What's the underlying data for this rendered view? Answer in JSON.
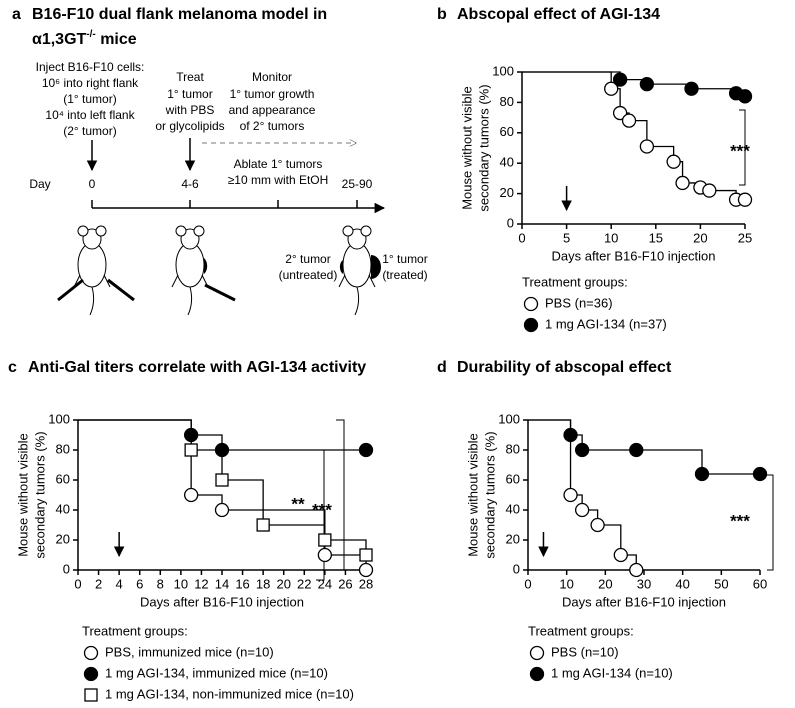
{
  "panel_a": {
    "label": "a",
    "title_line1": "B16-F10 dual flank melanoma model in",
    "title_line2": "α1,3GT",
    "title_sup": "-/-",
    "title_end": " mice",
    "inject": [
      "Inject B16-F10 cells:",
      "10⁶ into right flank",
      "(1° tumor)",
      "10⁴ into left flank",
      "(2° tumor)"
    ],
    "treat": [
      "Treat",
      "1° tumor",
      "with PBS",
      "or glycolipids"
    ],
    "monitor": [
      "Monitor",
      "1° tumor growth",
      "and appearance",
      "of 2° tumors"
    ],
    "ablate": [
      "Ablate 1° tumors",
      "≥10 mm with EtOH"
    ],
    "timeline": [
      "Day",
      "0",
      "4-6",
      "25-90"
    ],
    "tumor_left": [
      "2° tumor",
      "(untreated)"
    ],
    "tumor_right": [
      "1° tumor",
      "(treated)"
    ]
  },
  "chart_data": [
    {
      "type": "step",
      "label": "b",
      "title": "Abscopal effect of AGI-134",
      "xlabel": "Days after B16-F10 injection",
      "ylabel": [
        "Mouse without visible",
        "secondary tumors (%)"
      ],
      "xlim": [
        0,
        25
      ],
      "xticks": [
        0,
        5,
        10,
        15,
        20,
        25
      ],
      "ylim": [
        0,
        100
      ],
      "yticks": [
        0,
        20,
        40,
        60,
        80,
        100
      ],
      "arrow_x": 5,
      "annotations": [
        "***"
      ],
      "legend_title": "Treatment groups:",
      "series": [
        {
          "name": "PBS (n=36)",
          "marker": "open",
          "color": "#000000",
          "x": [
            0,
            10,
            11,
            12,
            14,
            17,
            18,
            20,
            21,
            24,
            25
          ],
          "values": [
            100,
            89,
            73,
            68,
            51,
            41,
            27,
            24,
            22,
            16,
            16
          ]
        },
        {
          "name": "1 mg AGI-134 (n=37)",
          "marker": "filled",
          "color": "#000000",
          "x": [
            0,
            11,
            14,
            19,
            24,
            25
          ],
          "values": [
            100,
            95,
            92,
            89,
            86,
            84
          ]
        }
      ]
    },
    {
      "type": "step",
      "label": "c",
      "title": "Anti-Gal titers correlate with AGI-134 activity",
      "xlabel": "Days after B16-F10 injection",
      "ylabel": [
        "Mouse without visible",
        "secondary tumors (%)"
      ],
      "xlim": [
        0,
        28
      ],
      "xticks": [
        0,
        2,
        4,
        6,
        8,
        10,
        12,
        14,
        16,
        18,
        20,
        22,
        24,
        26,
        28
      ],
      "ylim": [
        0,
        100
      ],
      "yticks": [
        0,
        20,
        40,
        60,
        80,
        100
      ],
      "arrow_x": 4,
      "annotations": [
        "**",
        "***"
      ],
      "legend_title": "Treatment groups:",
      "series": [
        {
          "name": "PBS, immunized mice (n=10)",
          "marker": "open",
          "color": "#000000",
          "x": [
            0,
            11,
            14,
            24,
            28
          ],
          "values": [
            100,
            50,
            40,
            10,
            0
          ]
        },
        {
          "name": "1 mg AGI-134, immunized mice (n=10)",
          "marker": "filled",
          "color": "#000000",
          "x": [
            0,
            11,
            14,
            28
          ],
          "values": [
            100,
            90,
            80,
            80
          ]
        },
        {
          "name": "1 mg AGI-134, non-immunized mice (n=10)",
          "marker": "square",
          "color": "#000000",
          "x": [
            0,
            11,
            14,
            18,
            24,
            28
          ],
          "values": [
            100,
            80,
            60,
            30,
            20,
            10
          ]
        }
      ]
    },
    {
      "type": "step",
      "label": "d",
      "title": "Durability of abscopal effect",
      "xlabel": "Days after B16-F10 injection",
      "ylabel": [
        "Mouse without visible",
        "secondary tumors (%)"
      ],
      "xlim": [
        0,
        60
      ],
      "xticks": [
        0,
        10,
        20,
        30,
        40,
        50,
        60
      ],
      "ylim": [
        0,
        100
      ],
      "yticks": [
        0,
        20,
        40,
        60,
        80,
        100
      ],
      "arrow_x": 4,
      "annotations": [
        "***"
      ],
      "legend_title": "Treatment groups:",
      "series": [
        {
          "name": "PBS (n=10)",
          "marker": "open",
          "color": "#000000",
          "x": [
            0,
            11,
            14,
            18,
            24,
            28
          ],
          "values": [
            100,
            50,
            40,
            30,
            10,
            0
          ]
        },
        {
          "name": "1 mg AGI-134 (n=10)",
          "marker": "filled",
          "color": "#000000",
          "x": [
            0,
            11,
            14,
            28,
            45,
            60
          ],
          "values": [
            100,
            90,
            80,
            80,
            64,
            64
          ]
        }
      ]
    }
  ]
}
